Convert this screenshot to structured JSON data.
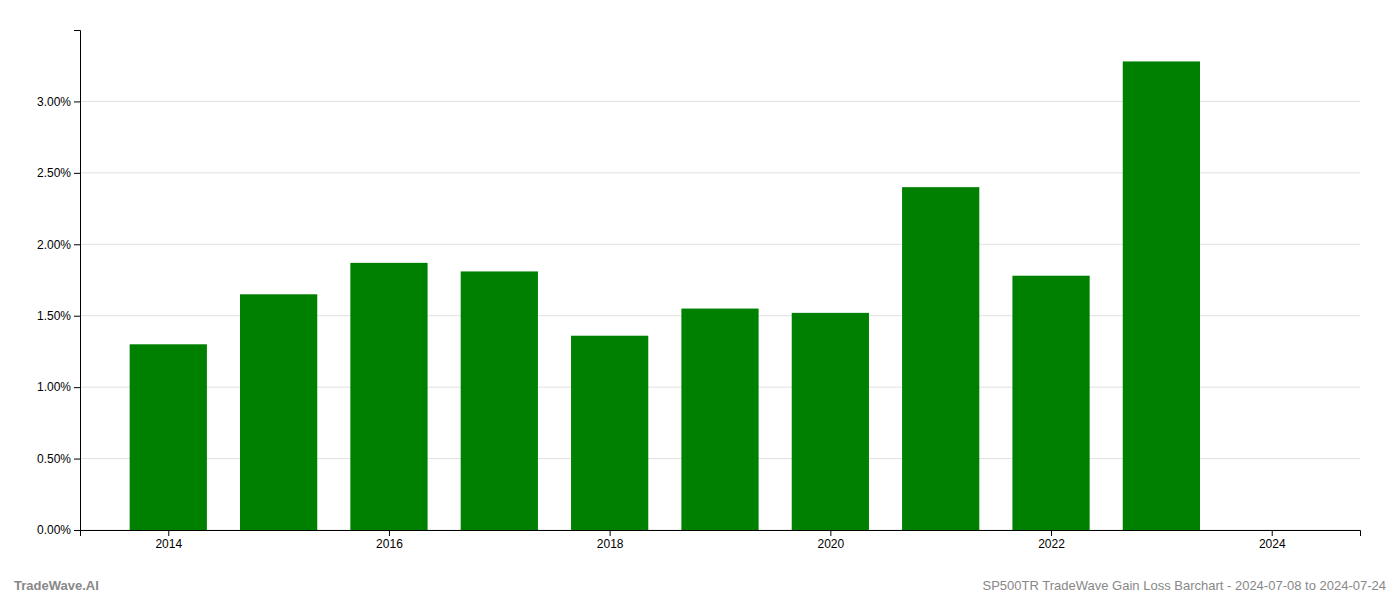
{
  "chart_data": {
    "type": "bar",
    "x": [
      2014,
      2015,
      2016,
      2017,
      2018,
      2019,
      2020,
      2021,
      2022,
      2023
    ],
    "values": [
      0.013,
      0.0165,
      0.0187,
      0.0181,
      0.0136,
      0.0155,
      0.0152,
      0.024,
      0.0178,
      0.0328
    ],
    "color": "#008000",
    "xlim": [
      2013.2,
      2024.8
    ],
    "xticks": [
      2014,
      2016,
      2018,
      2020,
      2022,
      2024
    ],
    "ylim": [
      0,
      0.035
    ],
    "yticks": [
      {
        "value": 0.0,
        "label": "0.00%"
      },
      {
        "value": 0.005,
        "label": "0.50%"
      },
      {
        "value": 0.01,
        "label": "1.00%"
      },
      {
        "value": 0.015,
        "label": "1.50%"
      },
      {
        "value": 0.02,
        "label": "2.00%"
      },
      {
        "value": 0.025,
        "label": "2.50%"
      },
      {
        "value": 0.03,
        "label": "3.00%"
      }
    ],
    "grid": true,
    "annotations": [
      "TradeWave.AI",
      "SP500TR TradeWave Gain Loss Barchart - 2024-07-08 to 2024-07-24"
    ]
  }
}
